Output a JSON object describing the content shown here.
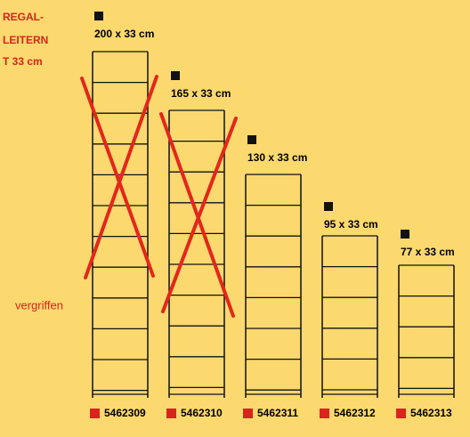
{
  "header": {
    "title_lines": [
      "REGAL-",
      "LEITERN",
      "T 33 cm"
    ]
  },
  "note": "vergriffen",
  "items": [
    {
      "size": "200 x 33 cm",
      "article": "5462309"
    },
    {
      "size": "165 x 33 cm",
      "article": "5462310"
    },
    {
      "size": "130 x 33 cm",
      "article": "5462311"
    },
    {
      "size": "95 x 33 cm",
      "article": "5462312"
    },
    {
      "size": "77 x 33 cm",
      "article": "5462313"
    }
  ]
}
